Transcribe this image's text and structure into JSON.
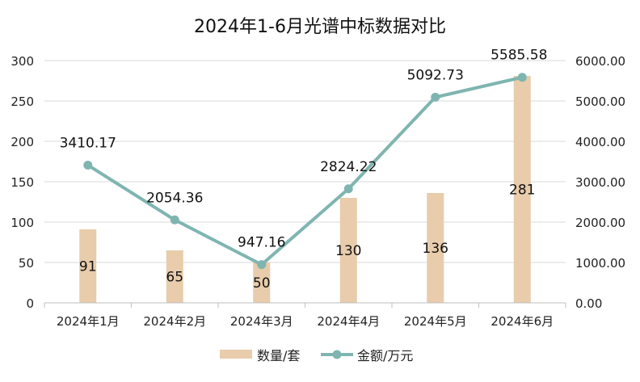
{
  "chart_data": {
    "type": "bar+line",
    "title": "2024年1-6月光谱中标数据对比",
    "categories": [
      "2024年1月",
      "2024年2月",
      "2024年3月",
      "2024年4月",
      "2024年5月",
      "2024年6月"
    ],
    "series": [
      {
        "name": "数量/套",
        "type": "bar",
        "axis": "left",
        "color": "#e8ccab",
        "values": [
          91,
          65,
          50,
          130,
          136,
          281
        ],
        "labels": [
          "91",
          "65",
          "50",
          "130",
          "136",
          "281"
        ]
      },
      {
        "name": "金额/万元",
        "type": "line",
        "axis": "right",
        "color": "#7fb5b0",
        "values": [
          3410.17,
          2054.36,
          947.16,
          2824.22,
          5092.73,
          5585.58
        ],
        "labels": [
          "3410.17",
          "2054.36",
          "947.16",
          "2824.22",
          "5092.73",
          "5585.58"
        ]
      }
    ],
    "y_left": {
      "lim": [
        0,
        300
      ],
      "ticks": [
        0,
        50,
        100,
        150,
        200,
        250,
        300
      ],
      "tick_labels": [
        "0",
        "50",
        "100",
        "150",
        "200",
        "250",
        "300"
      ]
    },
    "y_right": {
      "lim": [
        0,
        6000
      ],
      "ticks": [
        0,
        1000,
        2000,
        3000,
        4000,
        5000,
        6000
      ],
      "tick_labels": [
        "0.00",
        "1000.00",
        "2000.00",
        "3000.00",
        "4000.00",
        "5000.00",
        "6000.00"
      ]
    },
    "grid": true,
    "legend_position": "bottom"
  }
}
